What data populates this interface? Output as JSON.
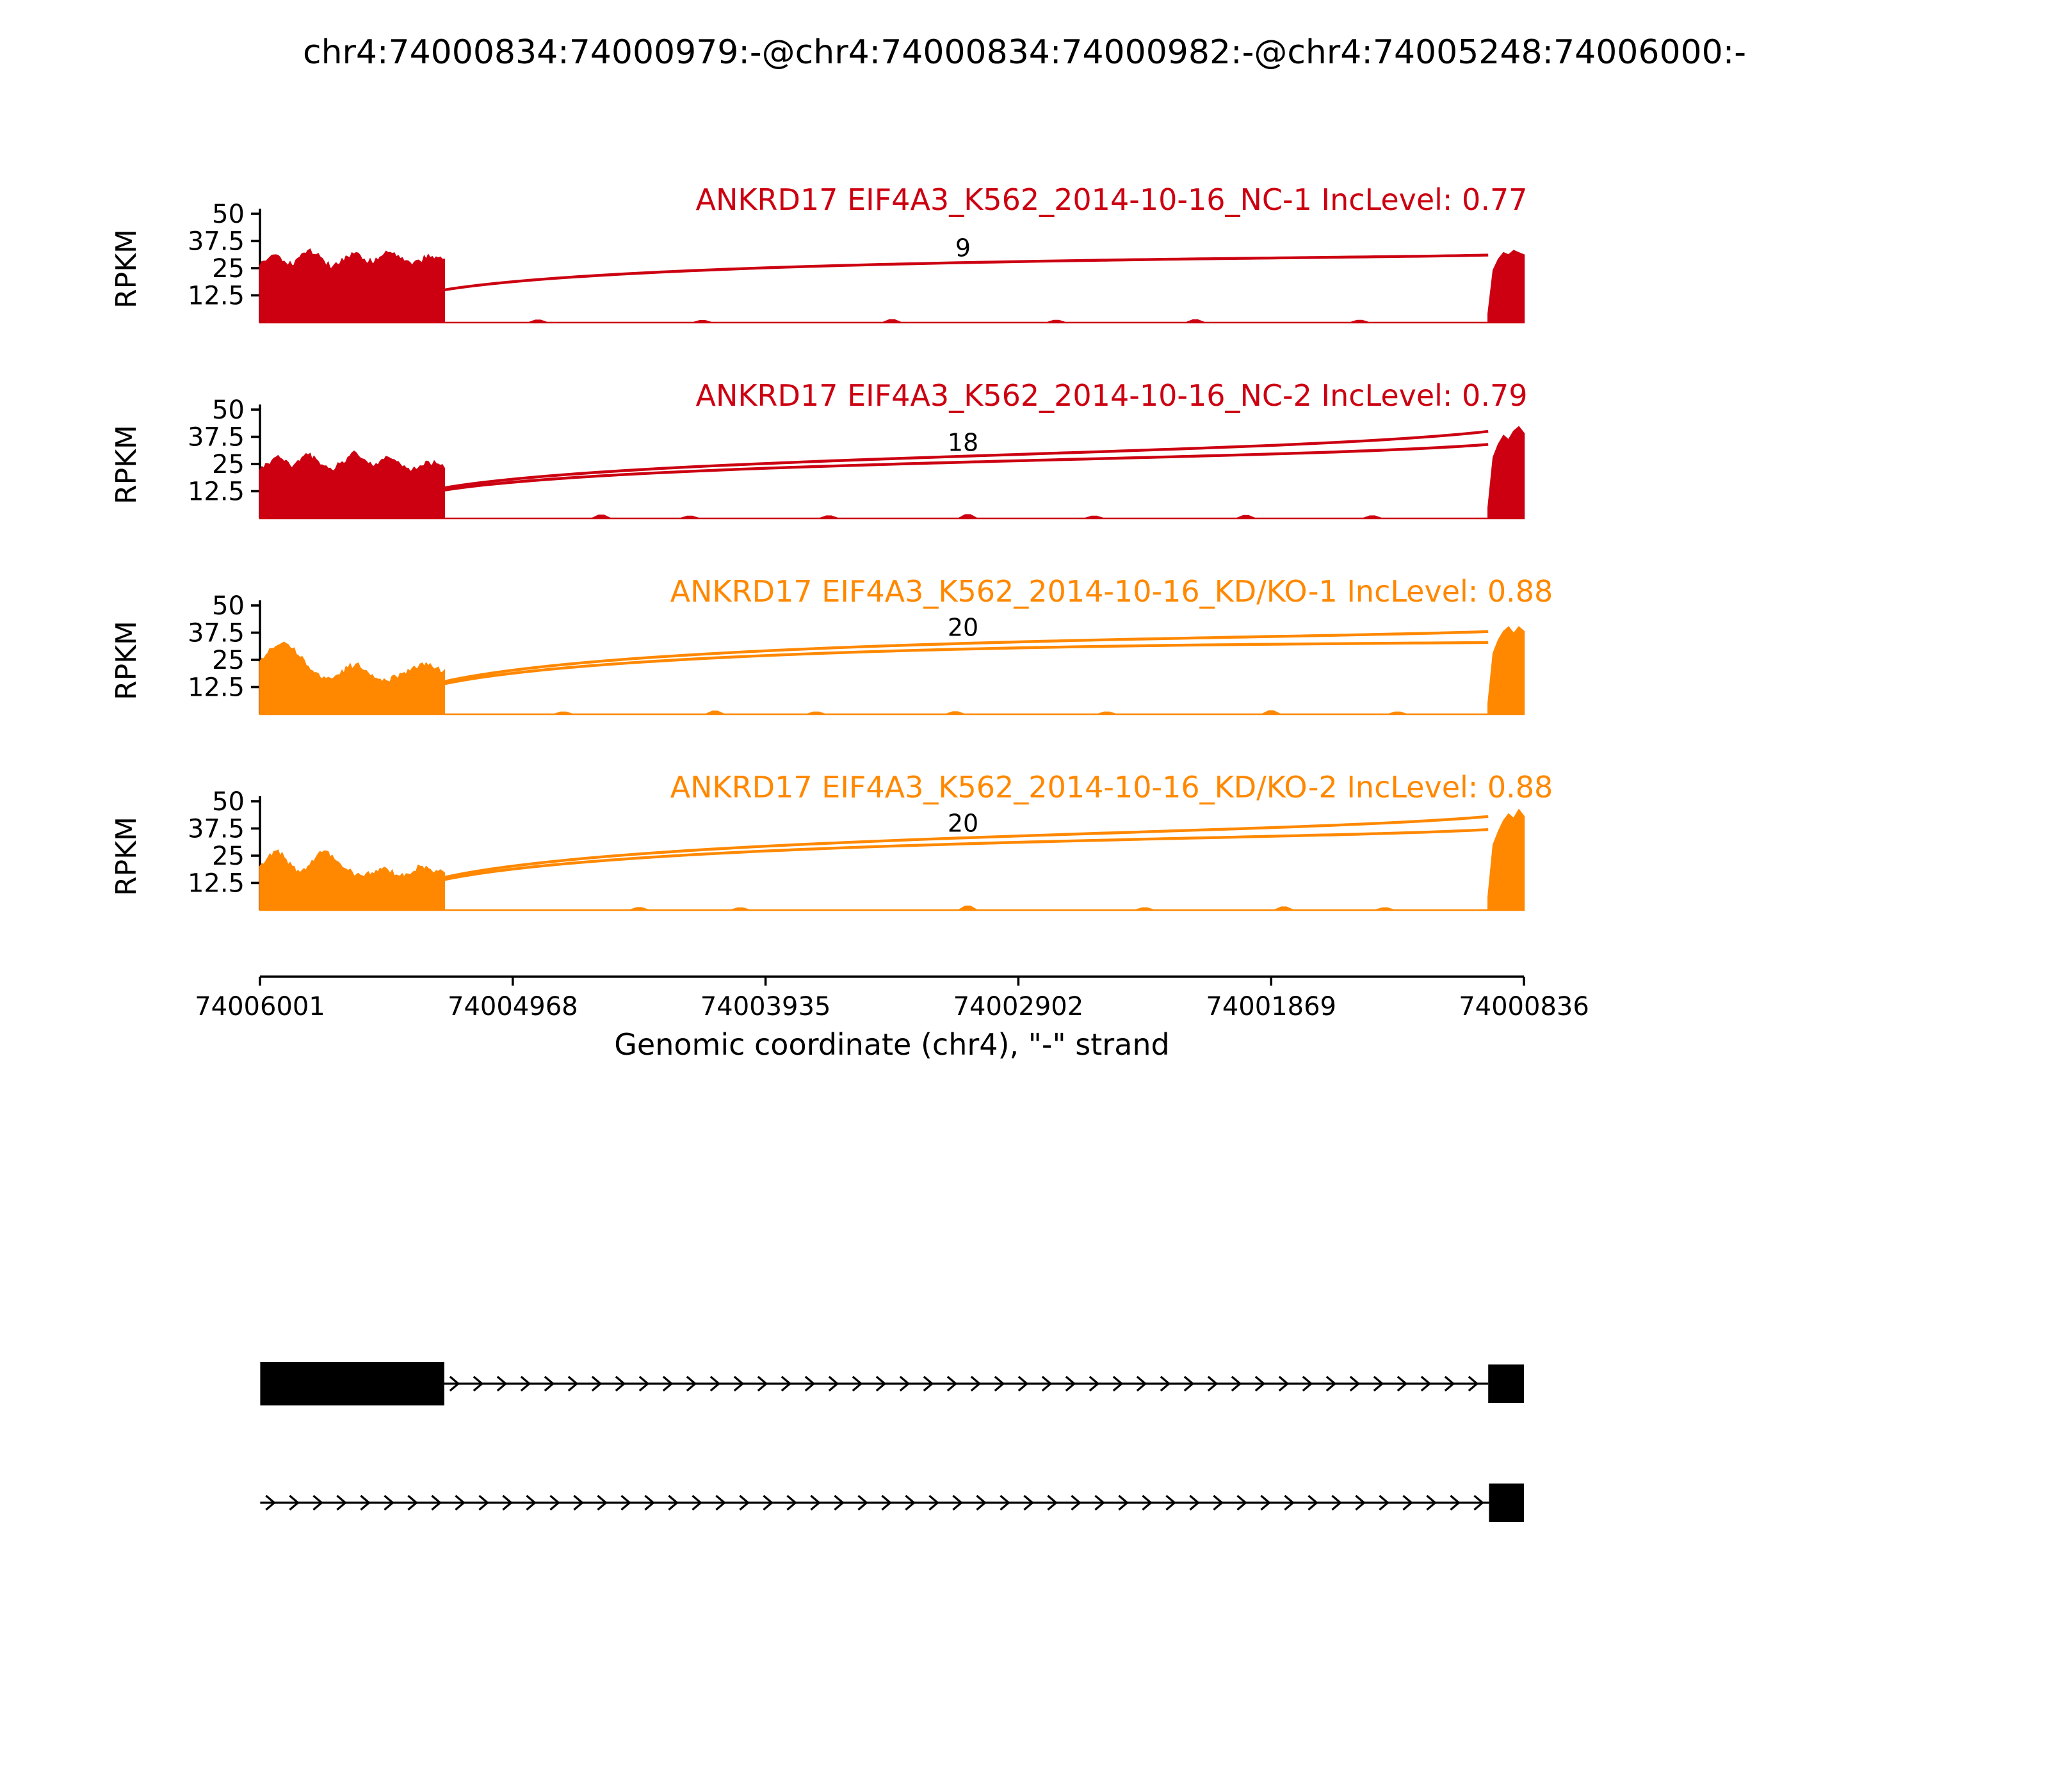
{
  "title": "chr4:74000834:74000979:-@chr4:74000834:74000982:-@chr4:74005248:74006000:-",
  "chart_data": {
    "type": "sashimi",
    "xlabel": "Genomic coordinate (chr4), \"-\" strand",
    "ylabel": "RPKM",
    "yticks": [
      12.5,
      25,
      37.5,
      50
    ],
    "ylim": [
      0,
      50
    ],
    "x_start": 74006001,
    "x_end": 74000836,
    "xticks": [
      74006001,
      74004968,
      74003935,
      74002902,
      74001869,
      74000836
    ],
    "left_exon": [
      74006000,
      74005248
    ],
    "right_exon": [
      74000982,
      74000836
    ],
    "tracks": [
      {
        "label": "ANKRD17 EIF4A3_K562_2014-10-16_NC-1 IncLevel: 0.77",
        "color": "#CC0011",
        "junction_reads": 9,
        "junction_label_rpkm": 30.5,
        "arcs": [
          {
            "left_h": 15,
            "right_h": 31,
            "apex_h": 29
          }
        ],
        "left_cov": [
          26,
          29,
          31,
          28,
          26,
          30,
          33,
          31,
          28,
          25,
          27,
          30,
          32,
          29,
          27,
          30,
          32,
          30,
          28,
          26,
          28,
          31,
          30,
          29
        ],
        "right_cov": [
          4,
          24,
          29,
          32,
          31,
          33,
          32,
          31
        ],
        "mid_bumps": [
          [
            0.22,
            1.0
          ],
          [
            0.35,
            0.8
          ],
          [
            0.5,
            1.2
          ],
          [
            0.63,
            0.9
          ],
          [
            0.74,
            1.1
          ],
          [
            0.87,
            0.9
          ]
        ]
      },
      {
        "label": "ANKRD17 EIF4A3_K562_2014-10-16_NC-2 IncLevel: 0.79",
        "color": "#CC0011",
        "junction_reads": 18,
        "junction_label_rpkm": 31,
        "arcs": [
          {
            "left_h": 14,
            "right_h": 40,
            "apex_h": 29
          },
          {
            "left_h": 13,
            "right_h": 34,
            "apex_h": 26.5
          }
        ],
        "left_cov": [
          22,
          25,
          28,
          26,
          23,
          26,
          29,
          27,
          24,
          22,
          25,
          28,
          30,
          27,
          24,
          26,
          28,
          26,
          24,
          22,
          24,
          26,
          25,
          23
        ],
        "right_cov": [
          5,
          28,
          34,
          38,
          36,
          40,
          42,
          39
        ],
        "mid_bumps": [
          [
            0.27,
            1.4
          ],
          [
            0.34,
            0.9
          ],
          [
            0.45,
            1.0
          ],
          [
            0.56,
            1.6
          ],
          [
            0.66,
            0.9
          ],
          [
            0.78,
            1.2
          ],
          [
            0.88,
            1.0
          ]
        ]
      },
      {
        "label": "ANKRD17 EIF4A3_K562_2014-10-16_KD/KO-1 IncLevel: 0.88",
        "color": "#FF8800",
        "junction_reads": 20,
        "junction_label_rpkm": 36,
        "arcs": [
          {
            "left_h": 15,
            "right_h": 38,
            "apex_h": 34.5
          },
          {
            "left_h": 14,
            "right_h": 33,
            "apex_h": 32
          }
        ],
        "left_cov": [
          24,
          28,
          31,
          33,
          30,
          26,
          22,
          19,
          17,
          16,
          18,
          21,
          23,
          20,
          18,
          16,
          15,
          17,
          19,
          21,
          23,
          22,
          21,
          20
        ],
        "right_cov": [
          5,
          28,
          34,
          38,
          40,
          37,
          40,
          38
        ],
        "mid_bumps": [
          [
            0.24,
            0.9
          ],
          [
            0.36,
            1.3
          ],
          [
            0.44,
            0.9
          ],
          [
            0.55,
            1.0
          ],
          [
            0.67,
            0.9
          ],
          [
            0.8,
            1.4
          ],
          [
            0.9,
            0.9
          ]
        ]
      },
      {
        "label": "ANKRD17 EIF4A3_K562_2014-10-16_KD/KO-2 IncLevel: 0.88",
        "color": "#FF8800",
        "junction_reads": 20,
        "junction_label_rpkm": 36,
        "arcs": [
          {
            "left_h": 15,
            "right_h": 43,
            "apex_h": 34.5
          },
          {
            "left_h": 14,
            "right_h": 37,
            "apex_h": 32
          }
        ],
        "left_cov": [
          20,
          24,
          27,
          24,
          20,
          17,
          20,
          24,
          27,
          25,
          21,
          18,
          16,
          15,
          17,
          19,
          18,
          16,
          15,
          17,
          20,
          19,
          18,
          17
        ],
        "right_cov": [
          6,
          30,
          36,
          41,
          44,
          42,
          46,
          43
        ],
        "mid_bumps": [
          [
            0.3,
            1.0
          ],
          [
            0.38,
            0.9
          ],
          [
            0.56,
            1.7
          ],
          [
            0.7,
            0.9
          ],
          [
            0.81,
            1.3
          ],
          [
            0.89,
            0.9
          ]
        ]
      }
    ]
  },
  "gene_diagram": {
    "isoforms": [
      {
        "exons": [
          [
            74006000,
            74005248
          ],
          [
            74000982,
            74000836
          ]
        ],
        "line": [
          74005248,
          74000982
        ]
      },
      {
        "exons": [
          [
            74000979,
            74000836
          ]
        ],
        "line": [
          74006000,
          74000979
        ]
      }
    ]
  }
}
